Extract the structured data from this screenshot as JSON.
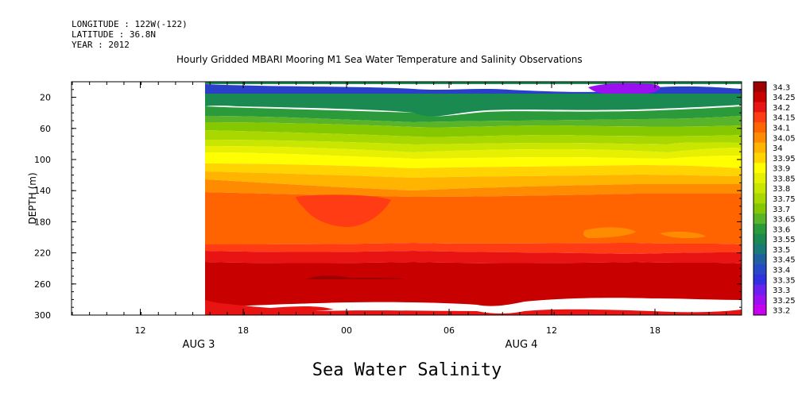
{
  "header": {
    "longitude": "LONGITUDE : 122W(-122)",
    "latitude": "LATITUDE : 36.8N",
    "year": "YEAR : 2012"
  },
  "title": "Hourly Gridded MBARI Mooring M1 Sea Water Temperature and Salinity Observations",
  "bottom_title": "Sea Water Salinity",
  "chart_data": {
    "type": "heatmap",
    "title": "Hourly Gridded MBARI Mooring M1 Sea Water Temperature and Salinity Observations",
    "subtitle": "Sea Water Salinity",
    "ylabel": "DEPTH (m)",
    "y_reversed": true,
    "ylim": [
      0,
      300
    ],
    "y_ticks": [
      20,
      60,
      100,
      140,
      180,
      220,
      260,
      300
    ],
    "x_ticks": [
      "12",
      "18",
      "00",
      "06",
      "12",
      "18"
    ],
    "x_dates": [
      "AUG 3",
      "AUG 4"
    ],
    "colorbar": {
      "levels": [
        "34.3",
        "34.25",
        "34.2",
        "34.15",
        "34.1",
        "34.05",
        "34",
        "33.95",
        "33.9",
        "33.85",
        "33.8",
        "33.75",
        "33.7",
        "33.65",
        "33.6",
        "33.55",
        "33.5",
        "33.45",
        "33.4",
        "33.35",
        "33.3",
        "33.25",
        "33.2"
      ],
      "colors": [
        "#9c0000",
        "#c80000",
        "#e81414",
        "#ff3c14",
        "#ff6400",
        "#ff8c00",
        "#ffb400",
        "#ffd400",
        "#ffff00",
        "#e6f000",
        "#c8e600",
        "#a8d800",
        "#86c800",
        "#5ab42a",
        "#2a9a3a",
        "#1a8a50",
        "#1a7a78",
        "#2060a0",
        "#2848c8",
        "#3030e0",
        "#6a20f0",
        "#9a10f0",
        "#c800f0"
      ]
    },
    "profile": [
      {
        "depth": 10,
        "salinity": 33.5
      },
      {
        "depth": 20,
        "salinity": 33.38
      },
      {
        "depth": 30,
        "salinity": 33.62
      },
      {
        "depth": 40,
        "salinity": 33.7
      },
      {
        "depth": 50,
        "salinity": 33.75
      },
      {
        "depth": 60,
        "salinity": 33.8
      },
      {
        "depth": 70,
        "salinity": 33.85
      },
      {
        "depth": 80,
        "salinity": 33.88
      },
      {
        "depth": 100,
        "salinity": 33.92
      },
      {
        "depth": 110,
        "salinity": 33.98
      },
      {
        "depth": 120,
        "salinity": 34.02
      },
      {
        "depth": 140,
        "salinity": 34.08
      },
      {
        "depth": 160,
        "salinity": 34.1
      },
      {
        "depth": 200,
        "salinity": 34.12
      },
      {
        "depth": 215,
        "salinity": 34.18
      },
      {
        "depth": 230,
        "salinity": 34.22
      },
      {
        "depth": 260,
        "salinity": 34.27
      },
      {
        "depth": 300,
        "salinity": 34.23
      }
    ],
    "no_data_before": "AUG 3 16:00"
  }
}
